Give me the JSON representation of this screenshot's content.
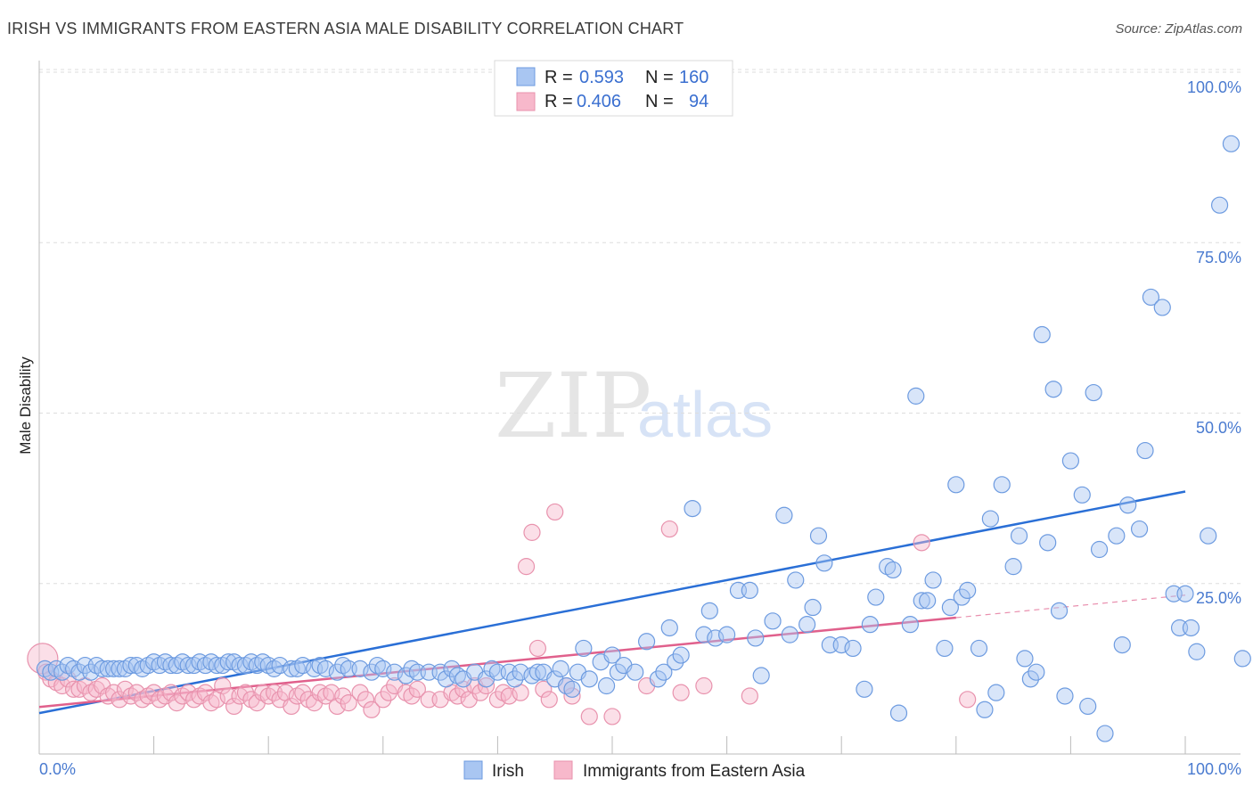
{
  "title": "IRISH VS IMMIGRANTS FROM EASTERN ASIA MALE DISABILITY CORRELATION CHART",
  "source": "Source: ZipAtlas.com",
  "watermark": {
    "zip": "ZIP",
    "atlas": "atlas"
  },
  "colors": {
    "irish_fill": "#a9c6f2",
    "irish_stroke": "#6d9be0",
    "irish_line": "#2a6fd6",
    "asia_fill": "#f7b8cb",
    "asia_stroke": "#e892ad",
    "asia_line": "#e0608c",
    "tick_color": "#4a7bd0",
    "grid": "#dddddd"
  },
  "legend": {
    "rows": [
      {
        "r_label": "R =",
        "r_value": "0.593",
        "n_label": "N =",
        "n_value": "160"
      },
      {
        "r_label": "R =",
        "r_value": "0.406",
        "n_label": "N =",
        "n_value": "94"
      }
    ]
  },
  "chart_data": {
    "type": "scatter",
    "title": "IRISH VS IMMIGRANTS FROM EASTERN ASIA MALE DISABILITY CORRELATION CHART",
    "xlabel": "",
    "ylabel": "Male Disability",
    "xlim": [
      0,
      100
    ],
    "ylim": [
      0,
      100
    ],
    "x_tick_labels": [
      "0.0%",
      "100.0%"
    ],
    "y_ticks": [
      25,
      50,
      75,
      100
    ],
    "y_tick_labels": [
      "25.0%",
      "50.0%",
      "75.0%",
      "100.0%"
    ],
    "grid": "horizontal dashed",
    "legend_position": "top-center",
    "series": [
      {
        "name": "Irish",
        "R": 0.593,
        "N": 160,
        "trend": {
          "x": [
            0,
            100
          ],
          "y": [
            6.0,
            38.5
          ],
          "style": "solid"
        },
        "points": [
          [
            0.5,
            12.5
          ],
          [
            1,
            12
          ],
          [
            1.5,
            12.5
          ],
          [
            2,
            12
          ],
          [
            2.5,
            13
          ],
          [
            3,
            12.5
          ],
          [
            3.5,
            12
          ],
          [
            4,
            13
          ],
          [
            4.5,
            12
          ],
          [
            5,
            13
          ],
          [
            5.5,
            12.5
          ],
          [
            6,
            12.5
          ],
          [
            6.5,
            12.5
          ],
          [
            7,
            12.5
          ],
          [
            7.5,
            12.5
          ],
          [
            8,
            13
          ],
          [
            8.5,
            13
          ],
          [
            9,
            12.5
          ],
          [
            9.5,
            13
          ],
          [
            10,
            13.5
          ],
          [
            10.5,
            13
          ],
          [
            11,
            13.5
          ],
          [
            11.5,
            13
          ],
          [
            12,
            13
          ],
          [
            12.5,
            13.5
          ],
          [
            13,
            13
          ],
          [
            13.5,
            13
          ],
          [
            14,
            13.5
          ],
          [
            14.5,
            13
          ],
          [
            15,
            13.5
          ],
          [
            15.5,
            13
          ],
          [
            16,
            13
          ],
          [
            16.5,
            13.5
          ],
          [
            17,
            13.5
          ],
          [
            17.5,
            13
          ],
          [
            18,
            13
          ],
          [
            18.5,
            13.5
          ],
          [
            19,
            13
          ],
          [
            19.5,
            13.5
          ],
          [
            20,
            13
          ],
          [
            20.5,
            12.5
          ],
          [
            21,
            13
          ],
          [
            22,
            12.5
          ],
          [
            22.5,
            12.5
          ],
          [
            23,
            13
          ],
          [
            24,
            12.5
          ],
          [
            24.5,
            13
          ],
          [
            25,
            12.5
          ],
          [
            26,
            12
          ],
          [
            26.5,
            13
          ],
          [
            27,
            12.5
          ],
          [
            28,
            12.5
          ],
          [
            29,
            12
          ],
          [
            29.5,
            13
          ],
          [
            30,
            12.5
          ],
          [
            31,
            12
          ],
          [
            32,
            11.5
          ],
          [
            32.5,
            12.5
          ],
          [
            33,
            12
          ],
          [
            34,
            12
          ],
          [
            35,
            12
          ],
          [
            35.5,
            11
          ],
          [
            36,
            12.5
          ],
          [
            36.5,
            11.5
          ],
          [
            37,
            11
          ],
          [
            38,
            12
          ],
          [
            39,
            11
          ],
          [
            39.5,
            12.5
          ],
          [
            40,
            12
          ],
          [
            41,
            12
          ],
          [
            41.5,
            11
          ],
          [
            42,
            12
          ],
          [
            43,
            11.5
          ],
          [
            43.5,
            12
          ],
          [
            44,
            12
          ],
          [
            45,
            11
          ],
          [
            45.5,
            12.5
          ],
          [
            46,
            10
          ],
          [
            46.5,
            9.5
          ],
          [
            47,
            12
          ],
          [
            47.5,
            15.5
          ],
          [
            48,
            11
          ],
          [
            49,
            13.5
          ],
          [
            49.5,
            10
          ],
          [
            50,
            14.5
          ],
          [
            50.5,
            12
          ],
          [
            51,
            13
          ],
          [
            52,
            12
          ],
          [
            53,
            16.5
          ],
          [
            54,
            11
          ],
          [
            54.5,
            12
          ],
          [
            55,
            18.5
          ],
          [
            55.5,
            13.5
          ],
          [
            56,
            14.5
          ],
          [
            57,
            36
          ],
          [
            58,
            17.5
          ],
          [
            58.5,
            21
          ],
          [
            59,
            17
          ],
          [
            60,
            17.5
          ],
          [
            61,
            24
          ],
          [
            62,
            24
          ],
          [
            62.5,
            17
          ],
          [
            63,
            11.5
          ],
          [
            64,
            19.5
          ],
          [
            65,
            35
          ],
          [
            65.5,
            17.5
          ],
          [
            66,
            25.5
          ],
          [
            67,
            19
          ],
          [
            67.5,
            21.5
          ],
          [
            68,
            32
          ],
          [
            68.5,
            28
          ],
          [
            69,
            16
          ],
          [
            70,
            16
          ],
          [
            71,
            15.5
          ],
          [
            72,
            9.5
          ],
          [
            72.5,
            19
          ],
          [
            73,
            23
          ],
          [
            74,
            27.5
          ],
          [
            74.5,
            27
          ],
          [
            75,
            6
          ],
          [
            76,
            19
          ],
          [
            76.5,
            52.5
          ],
          [
            77,
            22.5
          ],
          [
            77.5,
            22.5
          ],
          [
            78,
            25.5
          ],
          [
            79,
            15.5
          ],
          [
            79.5,
            21.5
          ],
          [
            80,
            39.5
          ],
          [
            80.5,
            23
          ],
          [
            81,
            24
          ],
          [
            82,
            15.5
          ],
          [
            82.5,
            6.5
          ],
          [
            83,
            34.5
          ],
          [
            83.5,
            9
          ],
          [
            84,
            39.5
          ],
          [
            85,
            27.5
          ],
          [
            85.5,
            32
          ],
          [
            86,
            14
          ],
          [
            86.5,
            11
          ],
          [
            87,
            12
          ],
          [
            87.5,
            61.5
          ],
          [
            88,
            31
          ],
          [
            88.5,
            53.5
          ],
          [
            89,
            21
          ],
          [
            89.5,
            8.5
          ],
          [
            90,
            43
          ],
          [
            91,
            38
          ],
          [
            91.5,
            7
          ],
          [
            92,
            53
          ],
          [
            92.5,
            30
          ],
          [
            93,
            3
          ],
          [
            94,
            32
          ],
          [
            94.5,
            16
          ],
          [
            95,
            36.5
          ],
          [
            96,
            33
          ],
          [
            96.5,
            44.5
          ],
          [
            97,
            67
          ],
          [
            98,
            65.5
          ],
          [
            99,
            23.5
          ],
          [
            99.5,
            18.5
          ],
          [
            100,
            23.5
          ],
          [
            100.5,
            18.5
          ],
          [
            101,
            15
          ],
          [
            102,
            32
          ],
          [
            103,
            80.5
          ],
          [
            104,
            89.5
          ],
          [
            105,
            14
          ]
        ]
      },
      {
        "name": "Immigrants from Eastern Asia",
        "R": 0.406,
        "N": 94,
        "trend": {
          "x": [
            0,
            80
          ],
          "y": [
            6.9,
            20.0
          ],
          "style": "solid",
          "dashed_extension": {
            "x": [
              80,
              100
            ],
            "y": [
              20.0,
              23.3
            ]
          }
        },
        "points": [
          [
            0.3,
            14
          ],
          [
            0.6,
            12
          ],
          [
            1,
            11
          ],
          [
            1.5,
            10.5
          ],
          [
            2,
            10
          ],
          [
            2.5,
            11
          ],
          [
            3,
            9.5
          ],
          [
            3.5,
            9.5
          ],
          [
            4,
            10
          ],
          [
            4.5,
            9
          ],
          [
            5,
            9.5
          ],
          [
            5.5,
            10
          ],
          [
            6,
            8.5
          ],
          [
            6.5,
            9
          ],
          [
            7,
            8
          ],
          [
            7.5,
            9.5
          ],
          [
            8,
            8.5
          ],
          [
            8.5,
            9
          ],
          [
            9,
            8
          ],
          [
            9.5,
            8.5
          ],
          [
            10,
            9
          ],
          [
            10.5,
            8
          ],
          [
            11,
            8.5
          ],
          [
            11.5,
            9
          ],
          [
            12,
            7.5
          ],
          [
            12.5,
            8.5
          ],
          [
            13,
            9
          ],
          [
            13.5,
            8
          ],
          [
            14,
            8.5
          ],
          [
            14.5,
            9
          ],
          [
            15,
            7.5
          ],
          [
            15.5,
            8
          ],
          [
            16,
            10
          ],
          [
            16.5,
            8.5
          ],
          [
            17,
            7
          ],
          [
            17.5,
            8.5
          ],
          [
            18,
            9
          ],
          [
            18.5,
            8
          ],
          [
            19,
            7.5
          ],
          [
            19.5,
            9
          ],
          [
            20,
            8.5
          ],
          [
            20.5,
            9
          ],
          [
            21,
            8
          ],
          [
            21.5,
            9
          ],
          [
            22,
            7
          ],
          [
            22.5,
            8.5
          ],
          [
            23,
            9
          ],
          [
            23.5,
            8
          ],
          [
            24,
            7.5
          ],
          [
            24.5,
            9
          ],
          [
            25,
            8.5
          ],
          [
            25.5,
            9
          ],
          [
            26,
            7
          ],
          [
            26.5,
            8.5
          ],
          [
            27,
            7.5
          ],
          [
            28,
            9
          ],
          [
            28.5,
            8
          ],
          [
            29,
            6.5
          ],
          [
            30,
            8
          ],
          [
            30.5,
            9
          ],
          [
            31,
            10
          ],
          [
            32,
            9
          ],
          [
            32.5,
            8.5
          ],
          [
            33,
            9.5
          ],
          [
            34,
            8
          ],
          [
            35,
            8
          ],
          [
            36,
            9
          ],
          [
            36.5,
            8.5
          ],
          [
            37,
            9.5
          ],
          [
            37.5,
            8
          ],
          [
            38,
            10
          ],
          [
            38.5,
            9
          ],
          [
            39,
            10
          ],
          [
            40,
            8
          ],
          [
            40.5,
            9
          ],
          [
            41,
            8.5
          ],
          [
            42,
            9
          ],
          [
            42.5,
            27.5
          ],
          [
            43,
            32.5
          ],
          [
            43.5,
            15.5
          ],
          [
            44,
            9.5
          ],
          [
            44.5,
            8
          ],
          [
            45,
            35.5
          ],
          [
            46,
            10
          ],
          [
            46.5,
            8.5
          ],
          [
            48,
            5.5
          ],
          [
            50,
            5.5
          ],
          [
            53,
            10
          ],
          [
            55,
            33
          ],
          [
            56,
            9
          ],
          [
            58,
            10
          ],
          [
            62,
            8.5
          ],
          [
            77,
            31
          ],
          [
            81,
            8
          ]
        ]
      }
    ]
  }
}
